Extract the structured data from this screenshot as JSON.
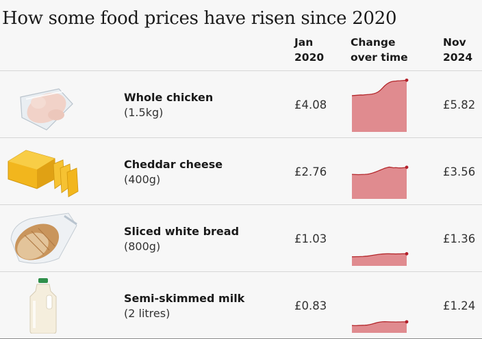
{
  "title": "How some food prices have risen since 2020",
  "columns": {
    "jan": [
      "Jan",
      "2020"
    ],
    "change": [
      "Change",
      "over time"
    ],
    "nov": [
      "Nov",
      "2024"
    ]
  },
  "items": [
    {
      "name": "Whole chicken",
      "size": "(1.5kg)",
      "jan": "£4.08",
      "nov": "£5.82",
      "image_icon": "whole-chicken-image"
    },
    {
      "name": "Cheddar cheese",
      "size": "(400g)",
      "jan": "£2.76",
      "nov": "£3.56",
      "image_icon": "cheddar-cheese-image"
    },
    {
      "name": "Sliced white bread",
      "size": "(800g)",
      "jan": "£1.03",
      "nov": "£1.36",
      "image_icon": "sliced-bread-image"
    },
    {
      "name": "Semi-skimmed milk",
      "size": "(2 litres)",
      "jan": "£0.83",
      "nov": "£1.24",
      "image_icon": "milk-bottle-image"
    }
  ],
  "colors": {
    "area": "#e08b8f",
    "line": "#b3272b",
    "endpoint": "#b3202a"
  },
  "chart_data": {
    "type": "area",
    "x_range": [
      "Jan 2020",
      "Nov 2024"
    ],
    "ylim": [
      0,
      6
    ],
    "series": [
      {
        "values": [
          4.08,
          4.1,
          4.12,
          4.14,
          4.16,
          4.15,
          4.18,
          4.2,
          4.22,
          4.25,
          4.3,
          4.38,
          4.5,
          4.7,
          4.95,
          5.2,
          5.4,
          5.55,
          5.65,
          5.7,
          5.72,
          5.75,
          5.76,
          5.78,
          5.8,
          5.82
        ]
      },
      {
        "values": [
          2.76,
          2.75,
          2.74,
          2.73,
          2.74,
          2.75,
          2.76,
          2.78,
          2.82,
          2.88,
          2.96,
          3.05,
          3.15,
          3.25,
          3.35,
          3.45,
          3.52,
          3.58,
          3.55,
          3.5,
          3.52,
          3.5,
          3.49,
          3.5,
          3.52,
          3.56
        ]
      },
      {
        "values": [
          1.03,
          1.03,
          1.04,
          1.04,
          1.05,
          1.06,
          1.08,
          1.1,
          1.13,
          1.17,
          1.21,
          1.25,
          1.29,
          1.32,
          1.34,
          1.35,
          1.36,
          1.36,
          1.35,
          1.35,
          1.34,
          1.35,
          1.35,
          1.36,
          1.36,
          1.36
        ]
      },
      {
        "values": [
          0.83,
          0.82,
          0.82,
          0.83,
          0.84,
          0.85,
          0.86,
          0.88,
          0.92,
          0.98,
          1.05,
          1.12,
          1.18,
          1.22,
          1.25,
          1.26,
          1.25,
          1.24,
          1.23,
          1.23,
          1.22,
          1.23,
          1.23,
          1.24,
          1.24,
          1.24
        ]
      }
    ]
  }
}
